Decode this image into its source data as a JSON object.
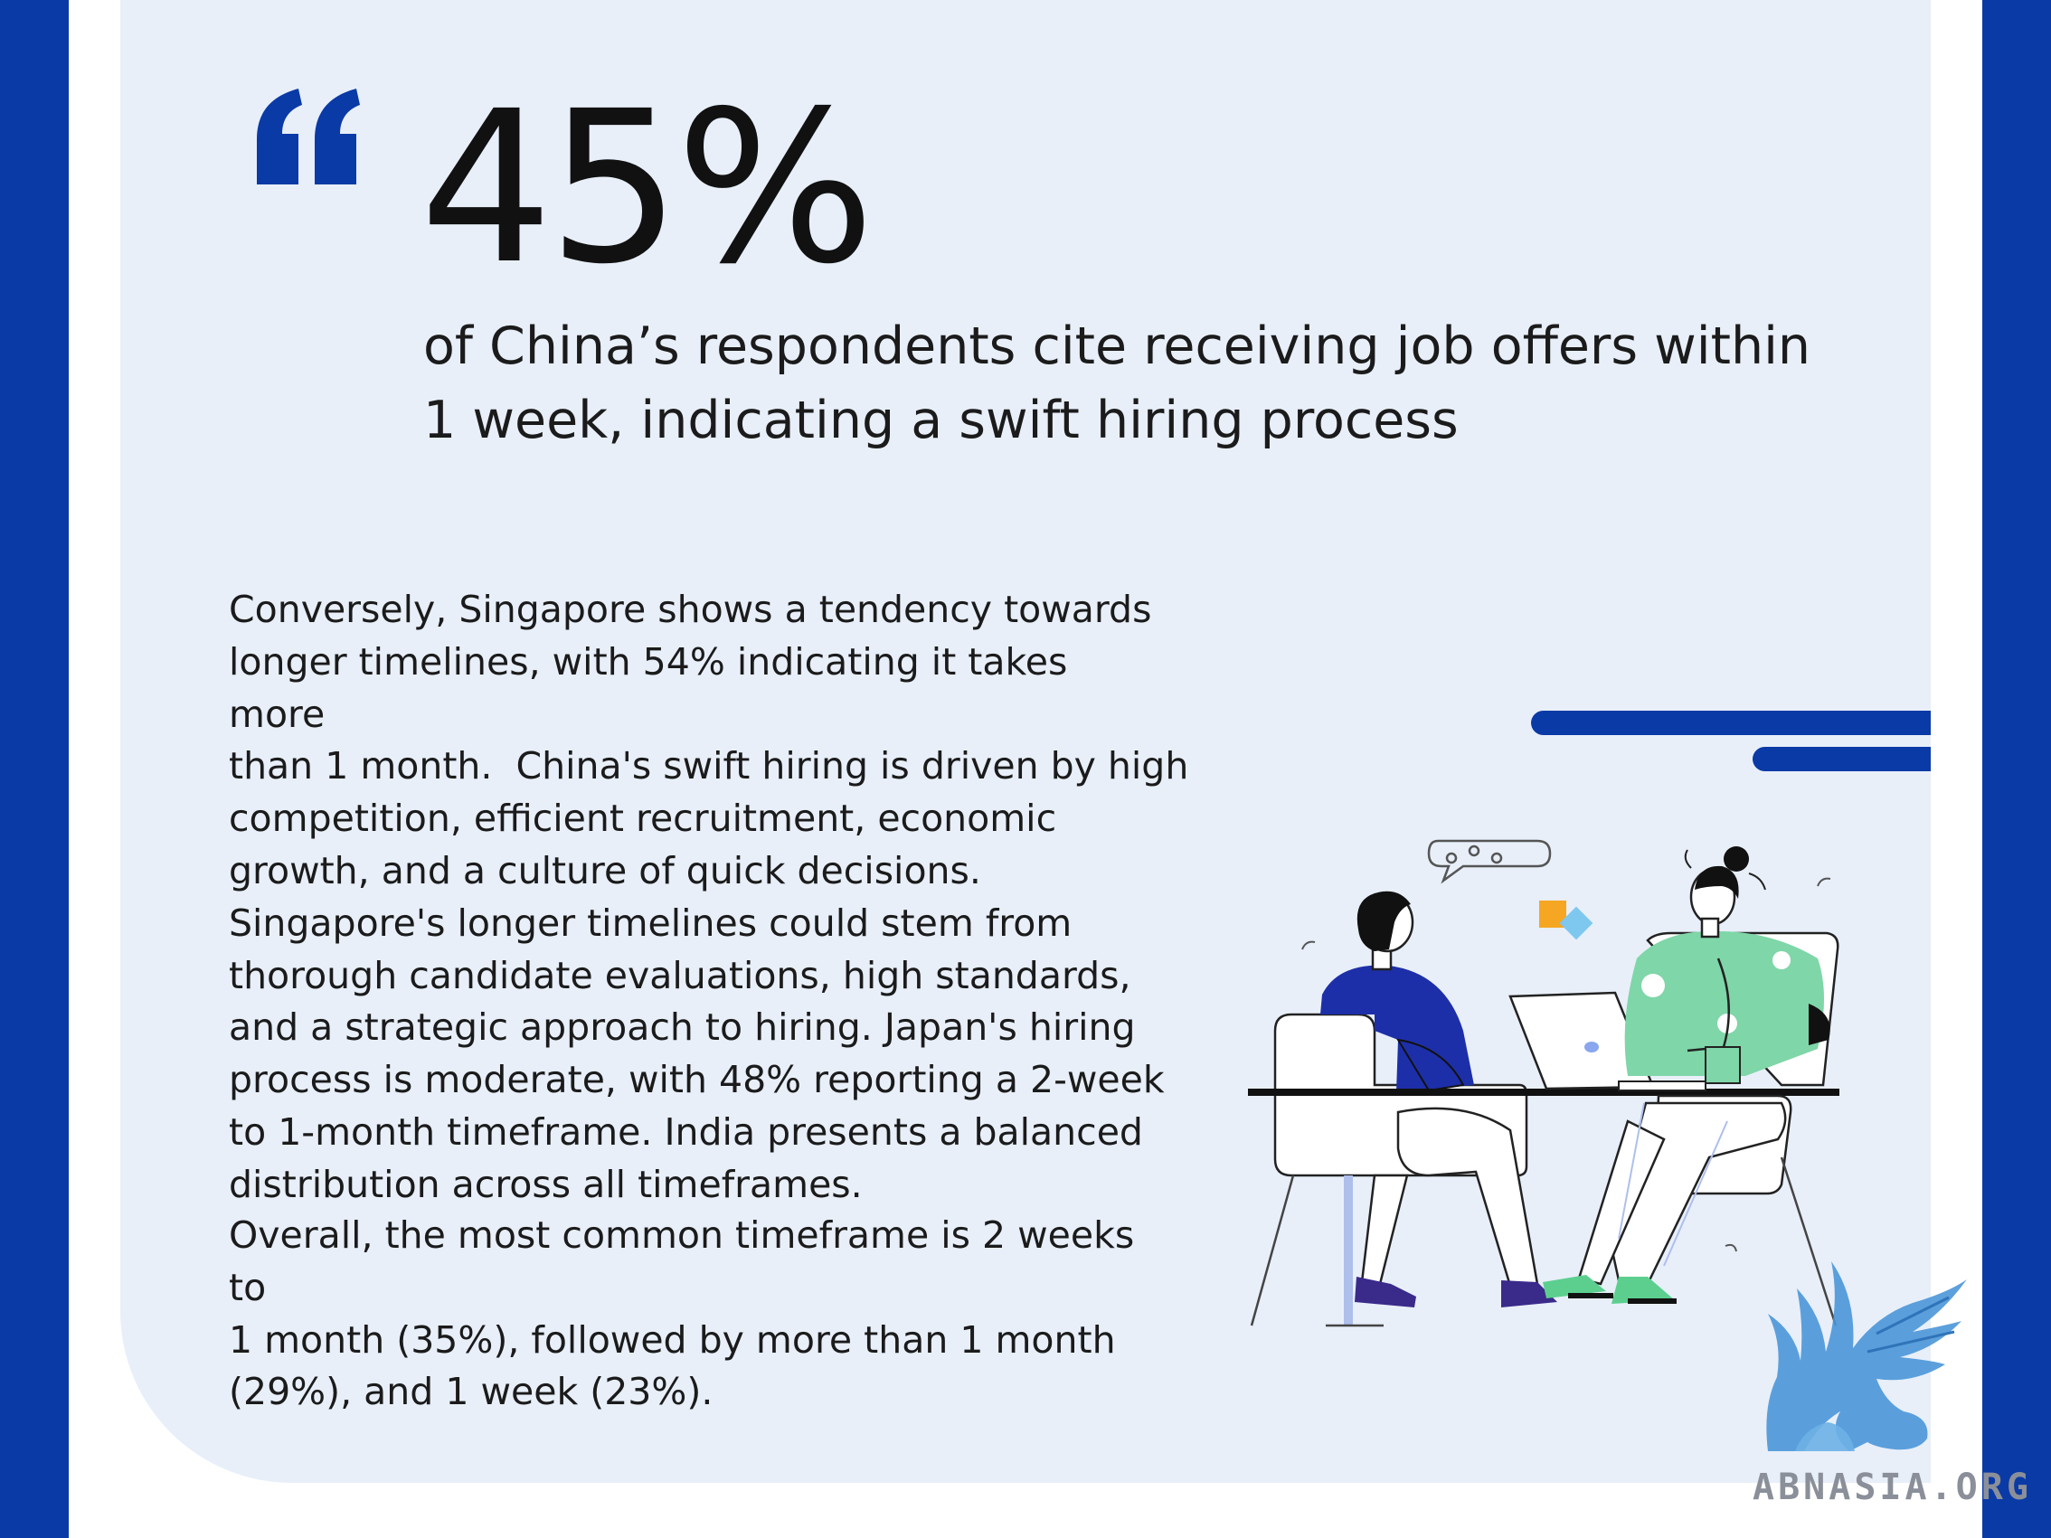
{
  "colors": {
    "brand": "#0a3aa6",
    "panel": "#e8eff9",
    "accent_green": "#7fd6a8",
    "logo_blue": "#4a96d8"
  },
  "headline": {
    "value": "45%",
    "description_line1": "of China’s respondents cite receiving job offers within",
    "description_line2": "1 week, indicating a swift hiring process"
  },
  "body": {
    "lines": [
      "Conversely, Singapore shows a tendency towards",
      "longer timelines, with 54% indicating it takes more",
      "than 1 month.  China's swift hiring is driven by high",
      "competition, efficient recruitment, economic",
      "growth, and a culture of quick decisions.",
      "Singapore's longer timelines could stem from",
      "thorough candidate evaluations, high standards,",
      "and a strategic approach to hiring. Japan's hiring",
      "process is moderate, with 48% reporting a 2-week",
      "to 1-month timeframe. India presents a balanced",
      "distribution across all timeframes."
    ],
    "summary_lines": [
      "Overall, the most common timeframe is 2 weeks to",
      "1 month (35%), followed by more than 1 month",
      "(29%), and 1 week (23%)."
    ]
  },
  "icons": {
    "quote": "quote-open-icon",
    "illustration": "interview-meeting-illustration",
    "logo": "griffin-logo"
  },
  "watermark": {
    "text": "ABNASIA.ORG"
  }
}
